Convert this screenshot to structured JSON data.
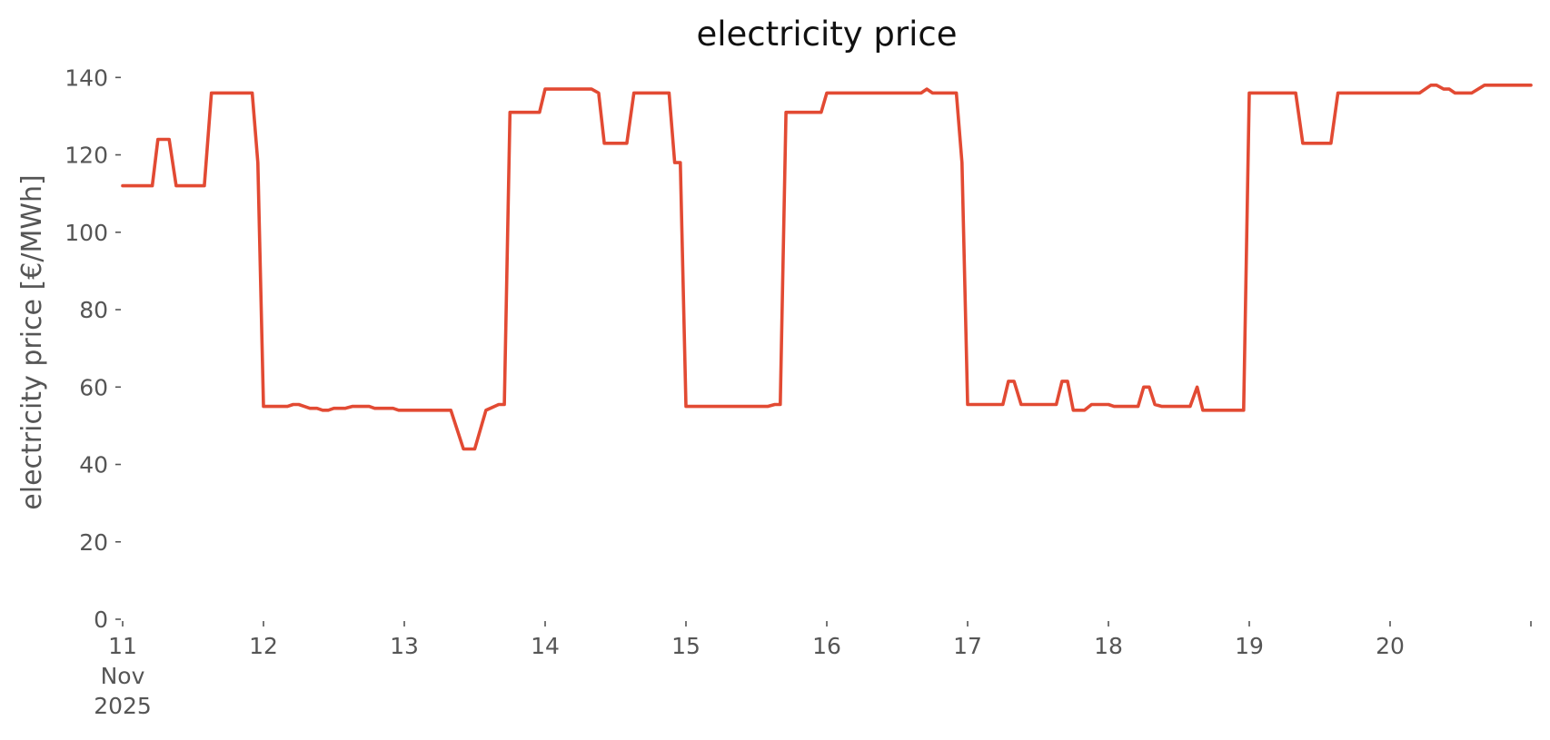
{
  "chart_data": {
    "type": "line",
    "title": "electricity price",
    "xlabel": "",
    "ylabel": "electricity price [€/MWh]",
    "xlim_days": [
      11,
      21
    ],
    "ylim": [
      0,
      145
    ],
    "y_ticks": [
      0,
      20,
      40,
      60,
      80,
      100,
      120,
      140
    ],
    "x_ticks": [
      {
        "day": 11,
        "lines": [
          "11",
          "Nov",
          "2025"
        ]
      },
      {
        "day": 12,
        "lines": [
          "12"
        ]
      },
      {
        "day": 13,
        "lines": [
          "13"
        ]
      },
      {
        "day": 14,
        "lines": [
          "14"
        ]
      },
      {
        "day": 15,
        "lines": [
          "15"
        ]
      },
      {
        "day": 16,
        "lines": [
          "16"
        ]
      },
      {
        "day": 17,
        "lines": [
          "17"
        ]
      },
      {
        "day": 18,
        "lines": [
          "18"
        ]
      },
      {
        "day": 19,
        "lines": [
          "19"
        ]
      },
      {
        "day": 20,
        "lines": [
          "20"
        ]
      },
      {
        "day": 21,
        "lines": [
          ""
        ]
      }
    ],
    "grid": false,
    "legend": "none",
    "color": "#e24a33",
    "series": [
      {
        "x": [
          11.0,
          11.21,
          11.25,
          11.33,
          11.38,
          11.42,
          11.58,
          11.63,
          11.92,
          11.96,
          12.0,
          12.04,
          12.08,
          12.17,
          12.21,
          12.25,
          12.29,
          12.33,
          12.38,
          12.42,
          12.46,
          12.5,
          12.54,
          12.58,
          12.63,
          12.67,
          12.71,
          12.75,
          12.79,
          12.83,
          12.88,
          12.92,
          12.96,
          13.0,
          13.33,
          13.42,
          13.5,
          13.58,
          13.67,
          13.71,
          13.75,
          13.96,
          14.0,
          14.33,
          14.38,
          14.42,
          14.58,
          14.63,
          14.88,
          14.92,
          14.96,
          15.0,
          15.58,
          15.63,
          15.67,
          15.71,
          15.96,
          16.0,
          16.67,
          16.71,
          16.75,
          16.92,
          16.96,
          17.0,
          17.25,
          17.29,
          17.33,
          17.38,
          17.63,
          17.67,
          17.71,
          17.75,
          17.83,
          17.88,
          18.0,
          18.04,
          18.21,
          18.25,
          18.29,
          18.33,
          18.38,
          18.42,
          18.58,
          18.63,
          18.67,
          18.96,
          19.0,
          19.33,
          19.38,
          19.58,
          19.63,
          20.21,
          20.29,
          20.33,
          20.38,
          20.42,
          20.46,
          20.58,
          20.67,
          21.0
        ],
        "y": [
          112,
          112,
          124,
          124,
          112,
          112,
          112,
          136,
          136,
          118,
          55,
          55,
          55,
          55,
          55.5,
          55.5,
          55,
          54.5,
          54.5,
          54,
          54,
          54.5,
          54.5,
          54.5,
          55,
          55,
          55,
          55,
          54.5,
          54.5,
          54.5,
          54.5,
          54,
          54,
          54,
          44,
          44,
          54,
          55.5,
          55.5,
          131,
          131,
          137,
          137,
          136,
          123,
          123,
          136,
          136,
          118,
          118,
          55,
          55,
          55.5,
          55.5,
          131,
          131,
          136,
          136,
          137,
          136,
          136,
          118,
          55.5,
          55.5,
          61.5,
          61.5,
          55.5,
          55.5,
          61.5,
          61.5,
          54,
          54,
          55.5,
          55.5,
          55,
          55,
          60,
          60,
          55.5,
          55,
          55,
          55,
          60,
          54,
          54,
          136,
          136,
          123,
          123,
          136,
          136,
          138,
          138,
          137,
          137,
          136,
          136,
          138,
          138
        ]
      }
    ]
  }
}
